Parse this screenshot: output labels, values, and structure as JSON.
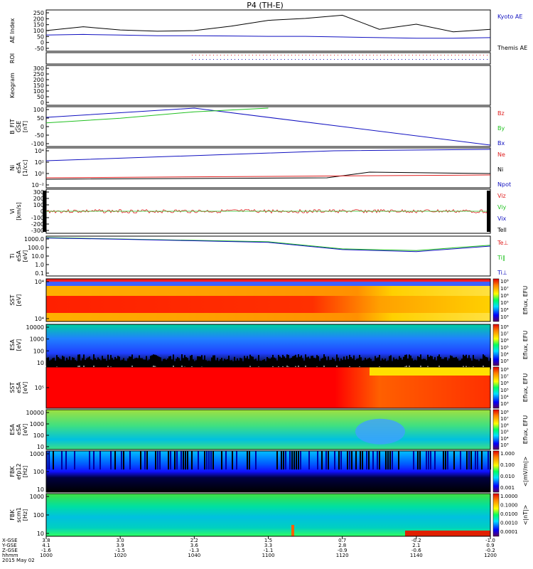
{
  "title": "P4 (TH-E)",
  "colors": {
    "red": "#e02020",
    "green": "#20c020",
    "blue": "#1010c0",
    "black": "#000000"
  },
  "panels": [
    {
      "id": "ae",
      "ylabel": [
        "AE Index"
      ],
      "ticks": [
        "250",
        "200",
        "150",
        "100",
        "50",
        "0",
        "-50"
      ],
      "legend": [
        {
          "text": "Kyoto AE",
          "color": "#1010c0"
        },
        {
          "text": "Themis AE",
          "color": "#000000"
        }
      ]
    },
    {
      "id": "roi",
      "ylabel": [
        "ROI"
      ],
      "ticks": [],
      "legend": []
    },
    {
      "id": "keogram",
      "ylabel": [
        "Keogram"
      ],
      "ticks": [
        "300",
        "250",
        "200",
        "150",
        "100",
        "50",
        "0"
      ],
      "legend": []
    },
    {
      "id": "bfit",
      "ylabel": [
        "B_FIT",
        "GSE",
        "[nT]"
      ],
      "ticks": [
        "100",
        "50",
        "0",
        "-50",
        "-100"
      ],
      "legend": [
        {
          "text": "Bz",
          "color": "#e02020"
        },
        {
          "text": "By",
          "color": "#20c020"
        },
        {
          "text": "Bx",
          "color": "#1010c0"
        }
      ]
    },
    {
      "id": "ni",
      "ylabel": [
        "Ni",
        "eSA",
        "[1/cc]"
      ],
      "ticks": [
        "10⁴",
        "10²",
        "10⁰",
        "10⁻²"
      ],
      "legend": [
        {
          "text": "Ne",
          "color": "#e02020"
        },
        {
          "text": "Ni",
          "color": "#000000"
        },
        {
          "text": "Npot",
          "color": "#1010c0"
        }
      ]
    },
    {
      "id": "vi",
      "ylabel": [
        "Vi",
        "[km/s]"
      ],
      "ticks": [
        "300",
        "200",
        "100",
        "0",
        "-100",
        "-200",
        "-300"
      ],
      "legend": [
        {
          "text": "Viz",
          "color": "#e02020"
        },
        {
          "text": "Viy",
          "color": "#20c020"
        },
        {
          "text": "Vix",
          "color": "#1010c0"
        },
        {
          "text": "Tell",
          "color": "#000000"
        }
      ]
    },
    {
      "id": "ti",
      "ylabel": [
        "Ti",
        "eSA",
        "[eV]"
      ],
      "ticks": [
        "1000.0",
        "100.0",
        "10.0",
        "1.0",
        "0.1"
      ],
      "legend": [
        {
          "text": "Te⊥",
          "color": "#e02020"
        },
        {
          "text": "Ti‖",
          "color": "#20c020"
        },
        {
          "text": "Ti⊥",
          "color": "#1010c0"
        }
      ]
    },
    {
      "id": "sst_e",
      "ylabel": [
        "SST",
        "[eV]"
      ],
      "ticks": [
        "10⁴",
        "10⁴"
      ],
      "cbar": {
        "label": "Eflux, EFU",
        "ticks": [
          "10⁸",
          "10⁷",
          "10⁶",
          "10⁵",
          "10⁴",
          "10³"
        ]
      }
    },
    {
      "id": "esa_e",
      "ylabel": [
        "ESA",
        "[eV]"
      ],
      "ticks": [
        "10000",
        "1000",
        "100",
        "10"
      ],
      "cbar": {
        "label": "Eflux, EFU",
        "ticks": [
          "10⁸",
          "10⁷",
          "10⁶",
          "10⁵",
          "10⁴",
          "10³"
        ]
      }
    },
    {
      "id": "sst_i",
      "ylabel": [
        "SST",
        "eSA",
        "[eV]"
      ],
      "ticks": [
        "10⁵"
      ],
      "cbar": {
        "label": "Eflux, EFU",
        "ticks": [
          "10⁸",
          "10⁷",
          "10⁶",
          "10⁵",
          "10⁴",
          "10³"
        ]
      }
    },
    {
      "id": "esa_i",
      "ylabel": [
        "ESA",
        "eSA",
        "[eV]"
      ],
      "ticks": [
        "10000",
        "1000",
        "100",
        "10"
      ],
      "cbar": {
        "label": "Eflux, EFU",
        "ticks": [
          "10⁸",
          "10⁷",
          "10⁶",
          "10⁵",
          "10⁴",
          "10³"
        ]
      }
    },
    {
      "id": "fbk1",
      "ylabel": [
        "FBK",
        "efp12",
        "[Hz]"
      ],
      "ticks": [
        "1000",
        "100",
        "10"
      ],
      "cbar": {
        "label": "<|mV/m|>",
        "ticks": [
          "1.000",
          "0.100",
          "0.010",
          "0.001"
        ]
      }
    },
    {
      "id": "fbk2",
      "ylabel": [
        "FBK",
        "scm1",
        "[Hz]"
      ],
      "ticks": [
        "1000",
        "100",
        "10"
      ],
      "cbar": {
        "label": "<|nT|>",
        "ticks": [
          "1.0000",
          "0.1000",
          "0.0100",
          "0.0010",
          "0.0001"
        ]
      }
    }
  ],
  "xaxis": {
    "rows": [
      {
        "label": "X-GSE",
        "values": [
          "3.8",
          "3.0",
          "2.2",
          "1.5",
          "0.7",
          "-0.2",
          "-1.0"
        ]
      },
      {
        "label": "Y-GSE",
        "values": [
          "4.1",
          "3.9",
          "3.6",
          "3.3",
          "2.8",
          "2.1",
          "0.9"
        ]
      },
      {
        "label": "Z-GSE",
        "values": [
          "-1.6",
          "-1.5",
          "-1.3",
          "-1.1",
          "-0.9",
          "-0.6",
          "-0.2"
        ]
      },
      {
        "label": "hhmm",
        "values": [
          "1000",
          "1020",
          "1040",
          "1100",
          "1120",
          "1140",
          "1200"
        ]
      }
    ],
    "date": "2015 May 02"
  },
  "chart_data": [
    {
      "type": "line",
      "title": "P4 (TH-E)",
      "ylabel": "AE Index",
      "ylim": [
        -50,
        250
      ],
      "x": [
        "1000",
        "1010",
        "1020",
        "1030",
        "1040",
        "1050",
        "1100",
        "1110",
        "1120",
        "1130",
        "1140",
        "1150",
        "1200"
      ],
      "series": [
        {
          "name": "Themis AE",
          "values": [
            100,
            130,
            105,
            95,
            100,
            135,
            180,
            195,
            220,
            110,
            150,
            90,
            110
          ]
        },
        {
          "name": "Kyoto AE",
          "values": [
            65,
            70,
            65,
            60,
            60,
            58,
            55,
            55,
            50,
            45,
            40,
            40,
            45
          ]
        }
      ]
    },
    {
      "type": "line",
      "ylabel": "B_FIT GSE [nT]",
      "ylim": [
        -100,
        100
      ],
      "x": [
        "1000",
        "1020",
        "1040",
        "1100",
        "1120",
        "1140",
        "1200"
      ],
      "series": [
        {
          "name": "Bx",
          "values": [
            50,
            75,
            100,
            null,
            null,
            null,
            -100
          ]
        },
        {
          "name": "By",
          "values": [
            20,
            45,
            80,
            100,
            null,
            null,
            null
          ]
        }
      ]
    },
    {
      "type": "line",
      "ylabel": "Ti eSA [eV]",
      "ylim": [
        0.1,
        1000
      ],
      "yscale": "log",
      "x": [
        "1000",
        "1020",
        "1040",
        "1100",
        "1120",
        "1140",
        "1200"
      ],
      "series": [
        {
          "name": "Ti‖",
          "values": [
            1000,
            700,
            500,
            350,
            60,
            40,
            150
          ]
        },
        {
          "name": "Ti⊥",
          "values": [
            900,
            650,
            450,
            300,
            50,
            30,
            120
          ]
        }
      ]
    }
  ]
}
